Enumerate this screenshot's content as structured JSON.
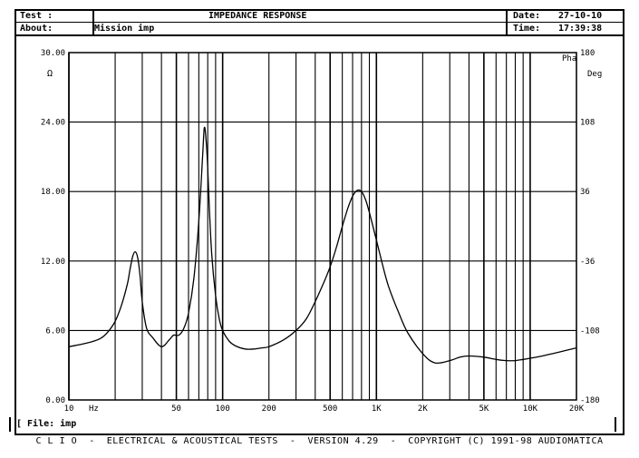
{
  "header": {
    "test_label": "Test :",
    "about_label": "About:",
    "about_value": "Mission imp",
    "title": "IMPEDANCE RESPONSE",
    "date_label": "Date:",
    "date_value": "27-10-10",
    "time_label": "Time:",
    "time_value": "17:39:38"
  },
  "file_bar": {
    "text": "[ File: imp"
  },
  "footer": {
    "text": "C L I O  -  ELECTRICAL & ACOUSTICAL TESTS  -  VERSION 4.29  -  COPYRIGHT (C) 1991-98 AUDIOMATICA"
  },
  "chart_data": {
    "type": "line",
    "title": "IMPEDANCE RESPONSE",
    "x_scale": "log",
    "xlim": [
      10,
      20000
    ],
    "ylim": [
      0,
      30
    ],
    "y2lim": [
      -180,
      180
    ],
    "y_unit_label": "Ω",
    "y2_unit_label": "Deg",
    "phase_unit_top": "Pha",
    "x_unit_label": "Hz",
    "y_ticks": [
      {
        "v": 0,
        "label": "0.00"
      },
      {
        "v": 6,
        "label": "6.00"
      },
      {
        "v": 12,
        "label": "12.00"
      },
      {
        "v": 18,
        "label": "18.00"
      },
      {
        "v": 24,
        "label": "24.00"
      },
      {
        "v": 30,
        "label": "30.00"
      }
    ],
    "y2_ticks": [
      {
        "v": -180,
        "label": "-180"
      },
      {
        "v": -108,
        "label": "-108"
      },
      {
        "v": -36,
        "label": "-36"
      },
      {
        "v": 36,
        "label": "36"
      },
      {
        "v": 108,
        "label": "108"
      },
      {
        "v": 180,
        "label": "180"
      }
    ],
    "x_ticks": [
      {
        "v": 10,
        "label": "10"
      },
      {
        "v": 50,
        "label": "50"
      },
      {
        "v": 100,
        "label": "100"
      },
      {
        "v": 200,
        "label": "200"
      },
      {
        "v": 500,
        "label": "500"
      },
      {
        "v": 1000,
        "label": "1K"
      },
      {
        "v": 2000,
        "label": "2K"
      },
      {
        "v": 5000,
        "label": "5K"
      },
      {
        "v": 10000,
        "label": "10K"
      },
      {
        "v": 20000,
        "label": "20K"
      }
    ],
    "grid": true,
    "series": [
      {
        "color": "#000000",
        "x": [
          10,
          13,
          16,
          18,
          20,
          22,
          24,
          25,
          26,
          27,
          28,
          29,
          30,
          32,
          35,
          40,
          45,
          48,
          52,
          56,
          60,
          65,
          70,
          74,
          76,
          78,
          80,
          82,
          85,
          90,
          95,
          100,
          110,
          120,
          140,
          160,
          180,
          200,
          250,
          300,
          350,
          400,
          450,
          500,
          550,
          600,
          650,
          700,
          750,
          800,
          850,
          900,
          1000,
          1100,
          1200,
          1400,
          1600,
          2000,
          2400,
          3000,
          3500,
          4000,
          5000,
          6000,
          7000,
          8000,
          9000,
          10000,
          12000,
          15000,
          20000
        ],
        "y": [
          4.6,
          4.9,
          5.3,
          5.9,
          6.8,
          8.2,
          10.0,
          11.3,
          12.4,
          12.8,
          12.3,
          10.8,
          8.5,
          6.2,
          5.4,
          4.6,
          5.2,
          5.6,
          5.6,
          6.2,
          7.5,
          10.5,
          15.5,
          21.0,
          23.5,
          22.5,
          20.0,
          16.5,
          12.5,
          9.0,
          7.0,
          6.0,
          5.1,
          4.7,
          4.4,
          4.4,
          4.5,
          4.6,
          5.2,
          6.0,
          7.0,
          8.5,
          10.0,
          11.5,
          13.2,
          15.0,
          16.5,
          17.6,
          18.1,
          18.0,
          17.3,
          16.2,
          13.8,
          11.6,
          9.8,
          7.5,
          5.8,
          4.0,
          3.2,
          3.4,
          3.7,
          3.8,
          3.7,
          3.5,
          3.4,
          3.4,
          3.5,
          3.6,
          3.8,
          4.1,
          4.5
        ]
      }
    ]
  }
}
